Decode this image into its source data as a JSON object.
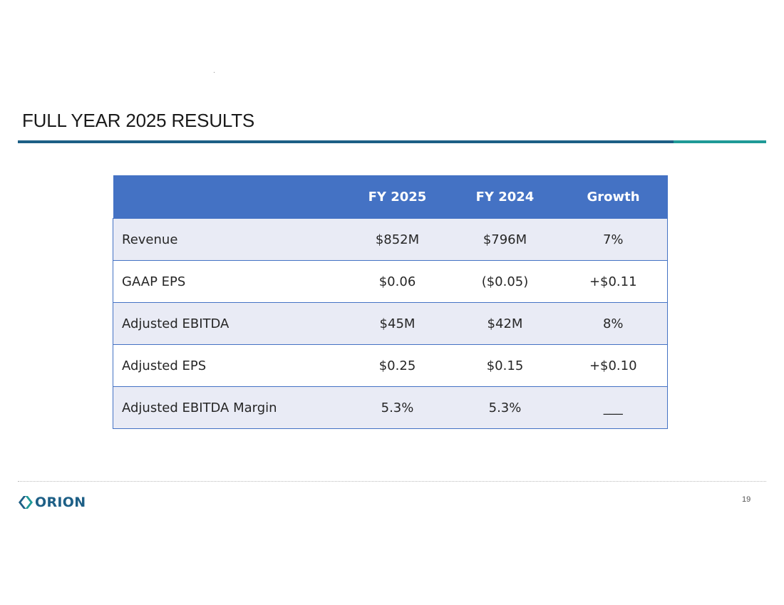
{
  "slide": {
    "title": "FULL YEAR 2025 RESULTS",
    "page_number": "19"
  },
  "table": {
    "headers": [
      "",
      "FY 2025",
      "FY 2024",
      "Growth"
    ],
    "rows": [
      [
        "Revenue",
        "$852M",
        "$796M",
        "7%"
      ],
      [
        "GAAP EPS",
        "$0.06",
        "($0.05)",
        "+$0.11"
      ],
      [
        "Adjusted EBITDA",
        "$45M",
        "$42M",
        "8%"
      ],
      [
        "Adjusted EPS",
        "$0.25",
        "$0.15",
        "+$0.10"
      ],
      [
        "Adjusted EBITDA Margin",
        "5.3%",
        "5.3%",
        "___"
      ]
    ]
  },
  "logo": {
    "text": "ORION",
    "icon": "orion-logo-icon",
    "color": "#1d5f86"
  },
  "colors": {
    "header_fill": "#4472c4",
    "row_band": "#e9ebf5",
    "rule_main": "#1d5f86",
    "rule_accent": "#1f9a97"
  }
}
